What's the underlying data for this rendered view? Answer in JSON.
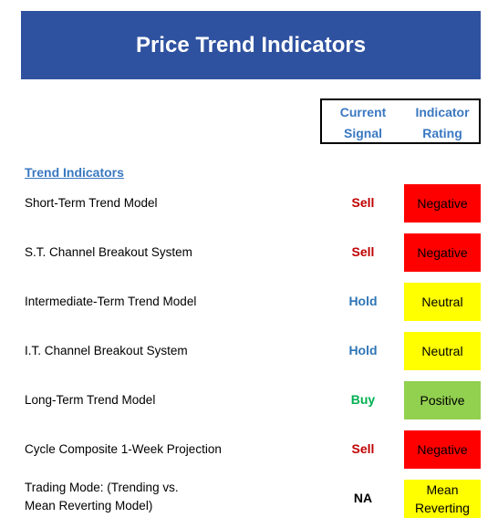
{
  "title": "Price Trend Indicators",
  "columns": {
    "current": [
      "Current",
      "Signal"
    ],
    "rating": [
      "Indicator",
      "Rating"
    ]
  },
  "section": "Trend Indicators",
  "colors": {
    "banner": "#2f52a0",
    "heading": "#3a78c2",
    "sell": "#c00000",
    "hold": "#2e75b6",
    "buy": "#00b050",
    "negative": "#ff0000",
    "neutral": "#ffff00",
    "positive": "#92d050"
  },
  "rows": [
    {
      "label": [
        "Short-Term Trend Model"
      ],
      "signal": "Sell",
      "rating": [
        "Negative"
      ],
      "signal_color": "#c00000",
      "rating_color": "#ff0000"
    },
    {
      "label": [
        "S.T. Channel Breakout System"
      ],
      "signal": "Sell",
      "rating": [
        "Negative"
      ],
      "signal_color": "#c00000",
      "rating_color": "#ff0000"
    },
    {
      "label": [
        "Intermediate-Term Trend Model"
      ],
      "signal": "Hold",
      "rating": [
        "Neutral"
      ],
      "signal_color": "#2e75b6",
      "rating_color": "#ffff00"
    },
    {
      "label": [
        "I.T. Channel Breakout System"
      ],
      "signal": "Hold",
      "rating": [
        "Neutral"
      ],
      "signal_color": "#2e75b6",
      "rating_color": "#ffff00"
    },
    {
      "label": [
        "Long-Term Trend Model"
      ],
      "signal": "Buy",
      "rating": [
        "Positive"
      ],
      "signal_color": "#00b050",
      "rating_color": "#92d050"
    },
    {
      "label": [
        "Cycle Composite 1-Week Projection"
      ],
      "signal": "Sell",
      "rating": [
        "Negative"
      ],
      "signal_color": "#c00000",
      "rating_color": "#ff0000"
    },
    {
      "label": [
        "Trading Mode: (Trending vs.",
        "Mean Reverting Model)"
      ],
      "signal": "NA",
      "rating": [
        "Mean",
        "Reverting"
      ],
      "signal_color": "#000000",
      "rating_color": "#ffff00"
    }
  ]
}
